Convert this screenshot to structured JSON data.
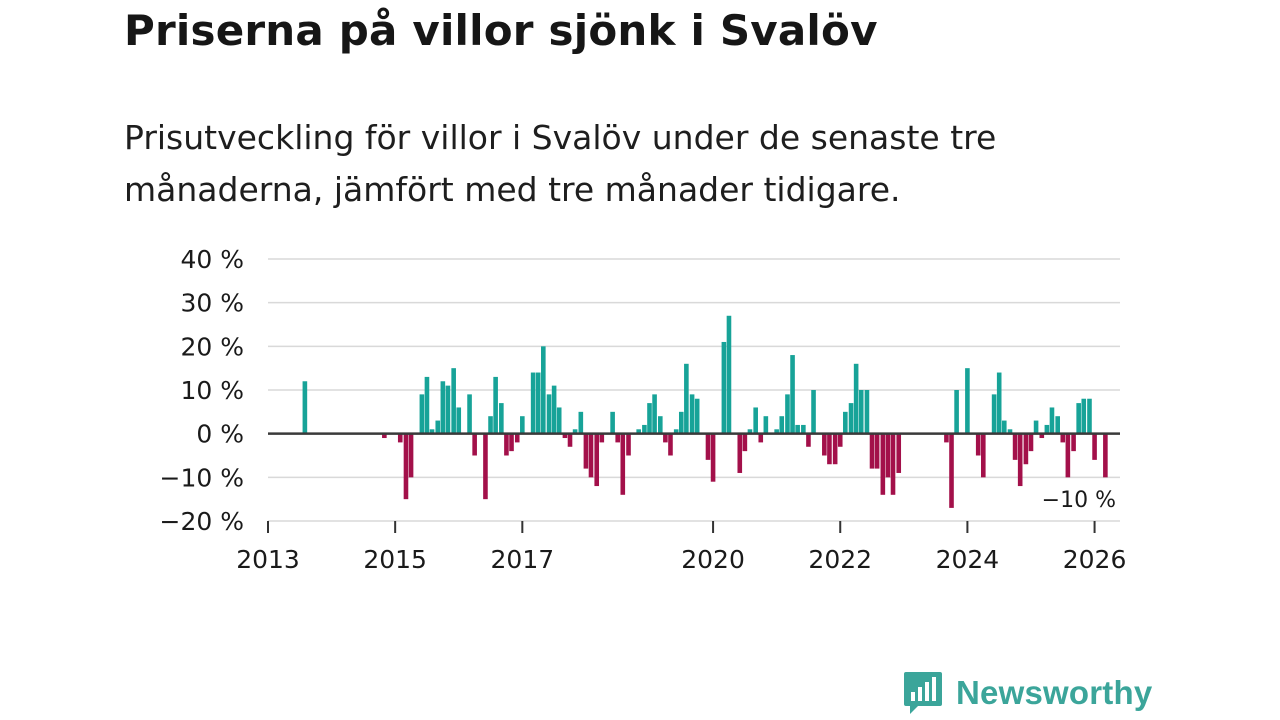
{
  "header": {
    "title": "Priserna på villor sjönk i Svalöv",
    "subtitle": "Prisutveckling för villor i Svalöv under de senaste tre månaderna, jämfört med tre månader tidigare."
  },
  "colors": {
    "positive": "#17a398",
    "negative": "#a3104a",
    "grid": "#d9d9d9",
    "zero_line": "#3a3a3a",
    "text": "#1a1a1a",
    "logo": "#3ba59a"
  },
  "chart_data": {
    "type": "bar",
    "title": "Priserna på villor sjönk i Svalöv",
    "xlabel": "",
    "ylabel": "",
    "ylim": [
      -20,
      40
    ],
    "yticks": [
      40,
      30,
      20,
      10,
      0,
      -10,
      -20
    ],
    "ytick_labels": [
      "40 %",
      "30 %",
      "20 %",
      "10 %",
      "0 %",
      "−10 %",
      "−20 %"
    ],
    "xlim": [
      2013.0,
      2026.4
    ],
    "xticks": [
      {
        "year": 2013,
        "label": "2013"
      },
      {
        "year": 2015,
        "label": "2015"
      },
      {
        "year": 2017,
        "label": "2017"
      },
      {
        "year": 2020,
        "label": "2020"
      },
      {
        "year": 2022,
        "label": "2022"
      },
      {
        "year": 2024,
        "label": "2024"
      },
      {
        "year": 2026,
        "label": "2026"
      }
    ],
    "grid": true,
    "annotation": {
      "text": "−10 %",
      "x": 2026.1,
      "y": -10
    },
    "series": [
      {
        "name": "Prisutveckling",
        "points": [
          {
            "x": 2013.58,
            "y": 12
          },
          {
            "x": 2014.83,
            "y": -1
          },
          {
            "x": 2015.08,
            "y": -2
          },
          {
            "x": 2015.17,
            "y": -15
          },
          {
            "x": 2015.25,
            "y": -10
          },
          {
            "x": 2015.42,
            "y": 9
          },
          {
            "x": 2015.5,
            "y": 13
          },
          {
            "x": 2015.58,
            "y": 1
          },
          {
            "x": 2015.67,
            "y": 3
          },
          {
            "x": 2015.75,
            "y": 12
          },
          {
            "x": 2015.83,
            "y": 11
          },
          {
            "x": 2015.92,
            "y": 15
          },
          {
            "x": 2016.0,
            "y": 6
          },
          {
            "x": 2016.17,
            "y": 9
          },
          {
            "x": 2016.25,
            "y": -5
          },
          {
            "x": 2016.42,
            "y": -15
          },
          {
            "x": 2016.5,
            "y": 4
          },
          {
            "x": 2016.58,
            "y": 13
          },
          {
            "x": 2016.67,
            "y": 7
          },
          {
            "x": 2016.75,
            "y": -5
          },
          {
            "x": 2016.83,
            "y": -4
          },
          {
            "x": 2016.92,
            "y": -2
          },
          {
            "x": 2017.0,
            "y": 4
          },
          {
            "x": 2017.17,
            "y": 14
          },
          {
            "x": 2017.25,
            "y": 14
          },
          {
            "x": 2017.33,
            "y": 20
          },
          {
            "x": 2017.42,
            "y": 9
          },
          {
            "x": 2017.5,
            "y": 11
          },
          {
            "x": 2017.58,
            "y": 6
          },
          {
            "x": 2017.67,
            "y": -1
          },
          {
            "x": 2017.75,
            "y": -3
          },
          {
            "x": 2017.83,
            "y": 1
          },
          {
            "x": 2017.92,
            "y": 5
          },
          {
            "x": 2018.0,
            "y": -8
          },
          {
            "x": 2018.08,
            "y": -10
          },
          {
            "x": 2018.17,
            "y": -12
          },
          {
            "x": 2018.25,
            "y": -2
          },
          {
            "x": 2018.42,
            "y": 5
          },
          {
            "x": 2018.5,
            "y": -2
          },
          {
            "x": 2018.58,
            "y": -14
          },
          {
            "x": 2018.67,
            "y": -5
          },
          {
            "x": 2018.83,
            "y": 1
          },
          {
            "x": 2018.92,
            "y": 2
          },
          {
            "x": 2019.0,
            "y": 7
          },
          {
            "x": 2019.08,
            "y": 9
          },
          {
            "x": 2019.17,
            "y": 4
          },
          {
            "x": 2019.25,
            "y": -2
          },
          {
            "x": 2019.33,
            "y": -5
          },
          {
            "x": 2019.42,
            "y": 1
          },
          {
            "x": 2019.5,
            "y": 5
          },
          {
            "x": 2019.58,
            "y": 16
          },
          {
            "x": 2019.67,
            "y": 9
          },
          {
            "x": 2019.75,
            "y": 8
          },
          {
            "x": 2019.92,
            "y": -6
          },
          {
            "x": 2020.0,
            "y": -11
          },
          {
            "x": 2020.17,
            "y": 21
          },
          {
            "x": 2020.25,
            "y": 27
          },
          {
            "x": 2020.42,
            "y": -9
          },
          {
            "x": 2020.5,
            "y": -4
          },
          {
            "x": 2020.58,
            "y": 1
          },
          {
            "x": 2020.67,
            "y": 6
          },
          {
            "x": 2020.75,
            "y": -2
          },
          {
            "x": 2020.83,
            "y": 4
          },
          {
            "x": 2021.0,
            "y": 1
          },
          {
            "x": 2021.08,
            "y": 4
          },
          {
            "x": 2021.17,
            "y": 9
          },
          {
            "x": 2021.25,
            "y": 18
          },
          {
            "x": 2021.33,
            "y": 2
          },
          {
            "x": 2021.42,
            "y": 2
          },
          {
            "x": 2021.5,
            "y": -3
          },
          {
            "x": 2021.58,
            "y": 10
          },
          {
            "x": 2021.75,
            "y": -5
          },
          {
            "x": 2021.83,
            "y": -7
          },
          {
            "x": 2021.92,
            "y": -7
          },
          {
            "x": 2022.0,
            "y": -3
          },
          {
            "x": 2022.08,
            "y": 5
          },
          {
            "x": 2022.17,
            "y": 7
          },
          {
            "x": 2022.25,
            "y": 16
          },
          {
            "x": 2022.33,
            "y": 10
          },
          {
            "x": 2022.42,
            "y": 10
          },
          {
            "x": 2022.5,
            "y": -8
          },
          {
            "x": 2022.58,
            "y": -8
          },
          {
            "x": 2022.67,
            "y": -14
          },
          {
            "x": 2022.75,
            "y": -10
          },
          {
            "x": 2022.83,
            "y": -14
          },
          {
            "x": 2022.92,
            "y": -9
          },
          {
            "x": 2023.67,
            "y": -2
          },
          {
            "x": 2023.75,
            "y": -17
          },
          {
            "x": 2023.83,
            "y": 10
          },
          {
            "x": 2024.0,
            "y": 15
          },
          {
            "x": 2024.17,
            "y": -5
          },
          {
            "x": 2024.25,
            "y": -10
          },
          {
            "x": 2024.42,
            "y": 9
          },
          {
            "x": 2024.5,
            "y": 14
          },
          {
            "x": 2024.58,
            "y": 3
          },
          {
            "x": 2024.67,
            "y": 1
          },
          {
            "x": 2024.75,
            "y": -6
          },
          {
            "x": 2024.83,
            "y": -12
          },
          {
            "x": 2024.92,
            "y": -7
          },
          {
            "x": 2025.0,
            "y": -4
          },
          {
            "x": 2025.08,
            "y": 3
          },
          {
            "x": 2025.17,
            "y": -1
          },
          {
            "x": 2025.25,
            "y": 2
          },
          {
            "x": 2025.33,
            "y": 6
          },
          {
            "x": 2025.42,
            "y": 4
          },
          {
            "x": 2025.5,
            "y": -2
          },
          {
            "x": 2025.58,
            "y": -10
          },
          {
            "x": 2025.67,
            "y": -4
          },
          {
            "x": 2025.75,
            "y": 7
          },
          {
            "x": 2025.83,
            "y": 8
          },
          {
            "x": 2025.92,
            "y": 8
          },
          {
            "x": 2026.0,
            "y": -6
          },
          {
            "x": 2026.17,
            "y": -10
          }
        ]
      }
    ]
  },
  "logo": {
    "icon": "newsworthy-bars-icon",
    "text": "Newsworthy"
  }
}
